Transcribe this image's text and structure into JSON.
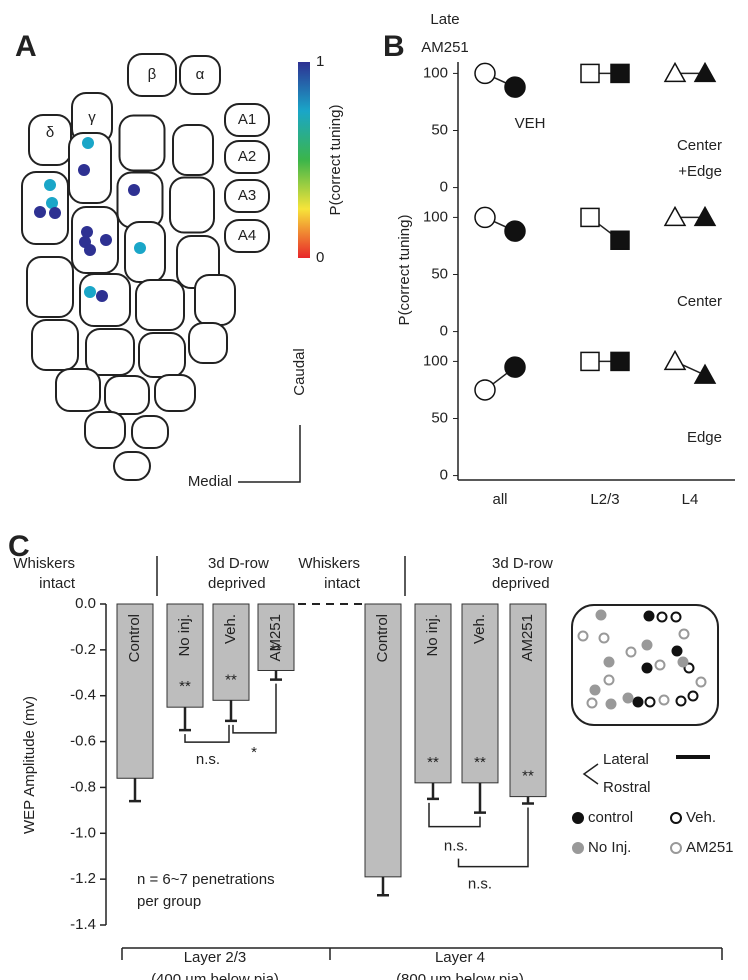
{
  "chart_data": [
    {
      "type": "barrel-map",
      "panel": "A",
      "barrel_labels": [
        "γ",
        "β",
        "α",
        "δ",
        "A1",
        "A2",
        "A3",
        "A4"
      ],
      "values": [
        0.75,
        0.75,
        0.75,
        0.75,
        0.75,
        1,
        1,
        1,
        1,
        1,
        1,
        1,
        1,
        1
      ],
      "colorbar": {
        "label": "P(correct tuning)",
        "lim": [
          0,
          1
        ],
        "ticks": [
          0,
          1
        ],
        "colors": [
          "#e8262a",
          "#f7e43a",
          "#3bb54a",
          "#1aa6c8",
          "#2e3192"
        ]
      },
      "axis_labels": [
        "Caudal",
        "Medial"
      ]
    },
    {
      "type": "dot-line",
      "panel": "B",
      "series_labels": [
        [
          "Late",
          "AM251"
        ],
        [
          "VEH"
        ]
      ],
      "categories": [
        "all",
        "L2/3",
        "L4"
      ],
      "markers": [
        "circle",
        "square",
        "triangle"
      ],
      "ylabel": "P(correct tuning)",
      "ylim": [
        -3,
        110
      ],
      "yticks": [
        0,
        50,
        100
      ],
      "rows": [
        {
          "label": [
            "Center",
            "+Edge"
          ],
          "series": [
            {
              "fill": "open",
              "values": [
                100,
                100,
                100
              ]
            },
            {
              "fill": "filled",
              "values": [
                88,
                100,
                100
              ]
            }
          ]
        },
        {
          "label": [
            "Center"
          ],
          "series": [
            {
              "fill": "open",
              "values": [
                100,
                100,
                100
              ]
            },
            {
              "fill": "filled",
              "values": [
                88,
                80,
                100
              ]
            }
          ]
        },
        {
          "label": [
            "Edge"
          ],
          "series": [
            {
              "fill": "open",
              "values": [
                75,
                100,
                100
              ]
            },
            {
              "fill": "filled",
              "values": [
                95,
                100,
                88
              ]
            }
          ]
        }
      ]
    },
    {
      "type": "bar",
      "panel": "C",
      "categories": [
        "Control",
        "No inj.",
        "Veh.",
        "AM251",
        "Control",
        "No inj.",
        "Veh.",
        "AM251"
      ],
      "values": [
        -0.76,
        -0.45,
        -0.42,
        -0.29,
        -1.19,
        -0.78,
        -0.78,
        -0.84
      ],
      "errors": [
        0.1,
        0.1,
        0.09,
        0.04,
        0.08,
        0.07,
        0.13,
        0.03
      ],
      "significance": [
        null,
        "**",
        "**",
        "**",
        null,
        "**",
        "**",
        "**"
      ],
      "color": "#bdbdbd",
      "ylabel": "WEP Amplitude (mv)",
      "ylim": [
        -1.4,
        0
      ],
      "yticks": [
        {
          "value": 0,
          "label": "0.0"
        },
        -0.2,
        -0.4,
        -0.6,
        -0.8,
        {
          "value": -1,
          "label": "-1.0"
        },
        -1.2,
        -1.4
      ],
      "condition_headers": [
        [
          "Whiskers",
          "intact"
        ],
        [
          "3d D-row",
          "deprived"
        ]
      ],
      "comparisons": [
        "n.s.",
        "*",
        "n.s.",
        "n.s."
      ],
      "groups": [
        [
          "Layer 2/3",
          "(400 µm below pia)"
        ],
        [
          "Layer 4",
          "(800 µm below pia)"
        ]
      ],
      "note": [
        "n = 6~7 penetrations",
        "per group"
      ],
      "inset": {
        "orientation": [
          "Lateral",
          "Rostral"
        ],
        "series": [
          {
            "name": "control",
            "color": "#111111",
            "filled": true
          },
          {
            "name": "Veh.",
            "color": "#111111",
            "filled": false
          },
          {
            "name": "No Inj.",
            "color": "#999999",
            "filled": true
          },
          {
            "name": "AM251",
            "color": "#999999",
            "filled": false
          }
        ]
      }
    }
  ]
}
